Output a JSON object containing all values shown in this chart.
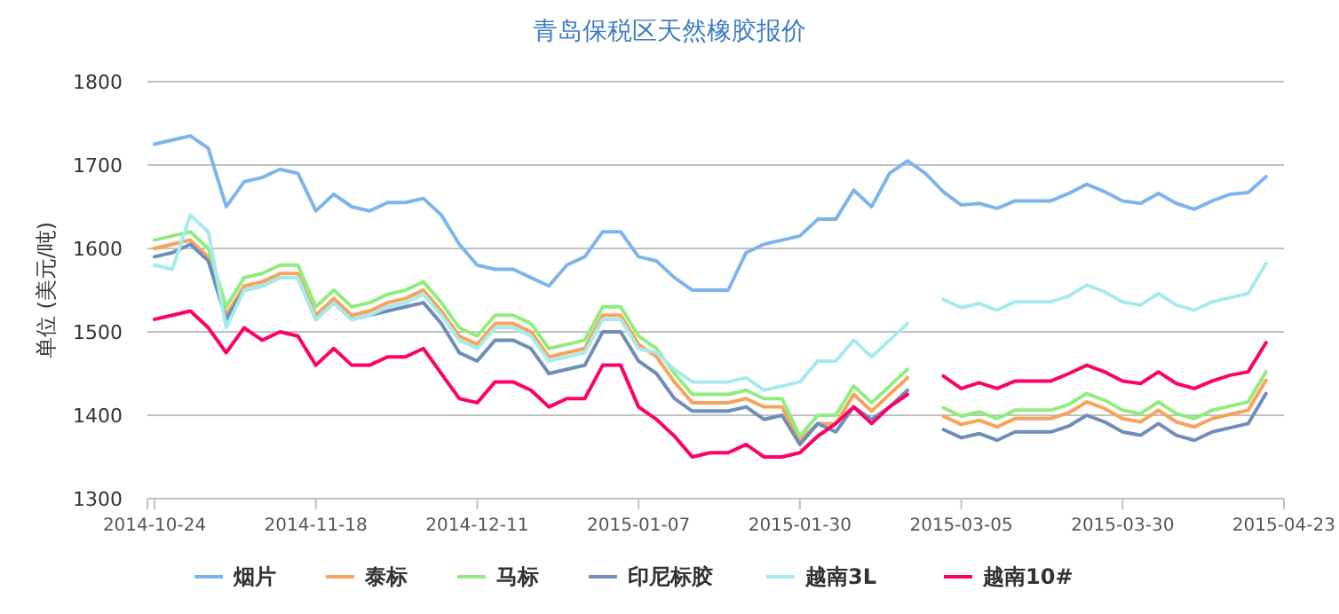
{
  "chart_data": {
    "type": "line",
    "title": "青岛保税区天然橡胶报价",
    "ylabel": "单位 (美元/吨)",
    "ylim": [
      1300,
      1800
    ],
    "yticks": [
      1300,
      1400,
      1500,
      1600,
      1700,
      1800
    ],
    "grid": "y",
    "legend": "bottom",
    "categories": [
      "2014-10-24",
      null,
      null,
      null,
      null,
      null,
      null,
      null,
      null,
      "2014-11-18",
      null,
      null,
      null,
      null,
      null,
      null,
      null,
      null,
      "2014-12-11",
      null,
      null,
      null,
      null,
      null,
      null,
      null,
      null,
      "2015-01-07",
      null,
      null,
      null,
      null,
      null,
      null,
      null,
      null,
      "2015-01-30",
      null,
      null,
      null,
      null,
      null,
      null,
      null,
      null,
      "2015-03-05",
      null,
      null,
      null,
      null,
      null,
      null,
      null,
      null,
      "2015-03-30",
      null,
      null,
      null,
      null,
      null,
      null,
      null,
      null,
      "2015-04-23"
    ],
    "series": [
      {
        "name": "烟片",
        "color": "#7cb5ec",
        "values": [
          1725,
          1730,
          1735,
          1720,
          1650,
          1680,
          1685,
          1695,
          1690,
          1645,
          1665,
          1650,
          1645,
          1655,
          1655,
          1660,
          1640,
          1605,
          1580,
          1575,
          1575,
          1565,
          1555,
          1580,
          1590,
          1620,
          1620,
          1590,
          1585,
          1565,
          1550,
          1550,
          1550,
          1595,
          1605,
          1610,
          1615,
          1635,
          1635,
          1670,
          1650,
          1690,
          1705,
          1690,
          1668,
          1652,
          1654,
          1648,
          1657,
          1657,
          1657,
          1666,
          1677,
          1668,
          1657,
          1654,
          1666,
          1654,
          1647,
          1657,
          1665,
          1667,
          1686,
          null
        ]
      },
      {
        "name": "泰标",
        "color": "#f7a35c",
        "values": [
          1600,
          1605,
          1610,
          1590,
          1520,
          1555,
          1560,
          1570,
          1570,
          1520,
          1540,
          1520,
          1525,
          1535,
          1540,
          1550,
          1525,
          1495,
          1485,
          1510,
          1510,
          1500,
          1470,
          1475,
          1480,
          1520,
          1520,
          1485,
          1470,
          1440,
          1415,
          1415,
          1415,
          1420,
          1410,
          1410,
          1370,
          1390,
          1390,
          1425,
          1405,
          1425,
          1445,
          null,
          1399,
          1389,
          1394,
          1386,
          1396,
          1396,
          1396,
          1403,
          1416,
          1408,
          1396,
          1392,
          1406,
          1392,
          1386,
          1396,
          1401,
          1406,
          1442,
          null
        ]
      },
      {
        "name": "马标",
        "color": "#90ed7d",
        "values": [
          1610,
          1615,
          1620,
          1600,
          1530,
          1565,
          1570,
          1580,
          1580,
          1530,
          1550,
          1530,
          1535,
          1545,
          1550,
          1560,
          1535,
          1505,
          1495,
          1520,
          1520,
          1510,
          1480,
          1485,
          1490,
          1530,
          1530,
          1495,
          1480,
          1450,
          1425,
          1425,
          1425,
          1430,
          1420,
          1420,
          1375,
          1400,
          1400,
          1435,
          1415,
          1435,
          1455,
          null,
          1409,
          1399,
          1404,
          1396,
          1406,
          1406,
          1406,
          1413,
          1426,
          1418,
          1406,
          1402,
          1416,
          1402,
          1396,
          1406,
          1411,
          1416,
          1452,
          null
        ]
      },
      {
        "name": "印尼标胶",
        "color": "#6f8db8",
        "values": [
          1590,
          1595,
          1605,
          1585,
          1515,
          1550,
          1555,
          1565,
          1565,
          1515,
          1535,
          1515,
          1520,
          1525,
          1530,
          1535,
          1510,
          1475,
          1465,
          1490,
          1490,
          1480,
          1450,
          1455,
          1460,
          1500,
          1500,
          1465,
          1450,
          1420,
          1405,
          1405,
          1405,
          1410,
          1395,
          1400,
          1365,
          1390,
          1380,
          1410,
          1395,
          1410,
          1430,
          null,
          1383,
          1373,
          1378,
          1370,
          1380,
          1380,
          1380,
          1387,
          1400,
          1392,
          1380,
          1376,
          1390,
          1376,
          1370,
          1380,
          1385,
          1390,
          1426,
          null
        ]
      },
      {
        "name": "越南3L",
        "color": "#a5ebee",
        "values": [
          1580,
          1575,
          1640,
          1620,
          1505,
          1550,
          1555,
          1565,
          1565,
          1515,
          1535,
          1515,
          1520,
          1530,
          1535,
          1545,
          1520,
          1490,
          1480,
          1505,
          1505,
          1495,
          1465,
          1470,
          1475,
          1515,
          1515,
          1480,
          1475,
          1455,
          1440,
          1440,
          1440,
          1445,
          1430,
          1435,
          1440,
          1465,
          1465,
          1490,
          1470,
          1490,
          1510,
          null,
          1539,
          1529,
          1534,
          1526,
          1536,
          1536,
          1536,
          1543,
          1556,
          1548,
          1536,
          1532,
          1546,
          1532,
          1526,
          1536,
          1541,
          1546,
          1582,
          null
        ]
      },
      {
        "name": "越南10#",
        "color": "#ff0066",
        "values": [
          1515,
          1520,
          1525,
          1505,
          1475,
          1505,
          1490,
          1500,
          1495,
          1460,
          1480,
          1460,
          1460,
          1470,
          1470,
          1480,
          1450,
          1420,
          1415,
          1440,
          1440,
          1430,
          1410,
          1420,
          1420,
          1460,
          1460,
          1410,
          1395,
          1375,
          1350,
          1355,
          1355,
          1365,
          1350,
          1350,
          1355,
          1375,
          1390,
          1410,
          1390,
          1410,
          1425,
          null,
          1447,
          1432,
          1439,
          1432,
          1441,
          1441,
          1441,
          1450,
          1460,
          1452,
          1441,
          1438,
          1452,
          1438,
          1432,
          1441,
          1448,
          1452,
          1487,
          null
        ]
      }
    ]
  }
}
